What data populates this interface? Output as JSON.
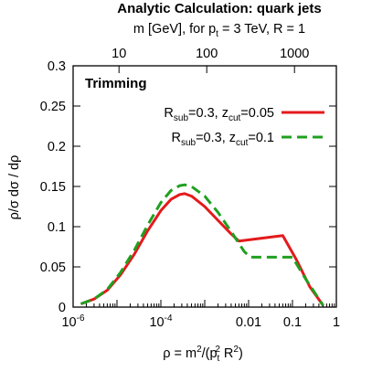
{
  "chart_data": {
    "type": "line",
    "title": "Analytic Calculation: quark jets",
    "top_axis_label": "m [GeV], for p_t = 3 TeV, R = 1",
    "top_ticks": [
      "10",
      "100",
      "1000"
    ],
    "top_tick_values_gev": [
      10,
      100,
      1000
    ],
    "panel_label": "Trimming",
    "xlabel": "ρ = m²/(p_t² R²)",
    "ylabel": "ρ/σ dσ / dρ",
    "x_scale": "log",
    "xlim": [
      1e-06,
      1
    ],
    "ylim": [
      0,
      0.3
    ],
    "pt_gev": 3000,
    "R": 1,
    "x_ticks": [
      {
        "value": 1e-06,
        "label": "10",
        "exp": "-6"
      },
      {
        "value": 0.0001,
        "label": "10",
        "exp": "-4"
      },
      {
        "value": 0.01,
        "label": "0.01",
        "exp": ""
      },
      {
        "value": 0.1,
        "label": "0.1",
        "exp": ""
      },
      {
        "value": 1,
        "label": "1",
        "exp": ""
      }
    ],
    "y_ticks": [
      "0",
      "0.05",
      "0.1",
      "0.15",
      "0.2",
      "0.25",
      "0.3"
    ],
    "y_tick_values": [
      0,
      0.05,
      0.1,
      0.15,
      0.2,
      0.25,
      0.3
    ],
    "legend_position": "top-right",
    "grid": false,
    "series": [
      {
        "name": "R_sub=0.3, z_cut=0.05",
        "legend_base": "R",
        "legend_sub1": "sub",
        "legend_mid": "=0.3, z",
        "legend_sub2": "cut",
        "legend_tail": "=0.05",
        "color": "#e41a1c",
        "dash": "solid",
        "points": [
          [
            1.5e-06,
            0.004
          ],
          [
            3e-06,
            0.01
          ],
          [
            6e-06,
            0.021
          ],
          [
            1.2e-05,
            0.04
          ],
          [
            2.5e-05,
            0.066
          ],
          [
            5e-05,
            0.095
          ],
          [
            0.0001,
            0.12
          ],
          [
            0.00017,
            0.134
          ],
          [
            0.00027,
            0.14
          ],
          [
            0.00035,
            0.141
          ],
          [
            0.0005,
            0.138
          ],
          [
            0.001,
            0.125
          ],
          [
            0.002,
            0.108
          ],
          [
            0.004,
            0.091
          ],
          [
            0.006,
            0.082
          ],
          [
            0.06,
            0.089
          ],
          [
            0.12,
            0.06
          ],
          [
            0.25,
            0.025
          ],
          [
            0.5,
            0.002
          ]
        ]
      },
      {
        "name": "R_sub=0.3, z_cut=0.1",
        "legend_base": "R",
        "legend_sub1": "sub",
        "legend_mid": "=0.3, z",
        "legend_sub2": "cut",
        "legend_tail": "=0.1",
        "color": "#1fa01f",
        "dash": "dashed",
        "points": [
          [
            1.5e-06,
            0.004
          ],
          [
            3e-06,
            0.01
          ],
          [
            6e-06,
            0.022
          ],
          [
            1.2e-05,
            0.043
          ],
          [
            2.5e-05,
            0.071
          ],
          [
            5e-05,
            0.102
          ],
          [
            0.0001,
            0.13
          ],
          [
            0.00017,
            0.145
          ],
          [
            0.00027,
            0.151
          ],
          [
            0.00035,
            0.152
          ],
          [
            0.0005,
            0.15
          ],
          [
            0.001,
            0.138
          ],
          [
            0.002,
            0.118
          ],
          [
            0.004,
            0.094
          ],
          [
            0.008,
            0.069
          ],
          [
            0.011,
            0.062
          ],
          [
            0.06,
            0.062
          ],
          [
            0.1,
            0.062
          ],
          [
            0.2,
            0.035
          ],
          [
            0.5,
            0.002
          ]
        ]
      }
    ]
  }
}
